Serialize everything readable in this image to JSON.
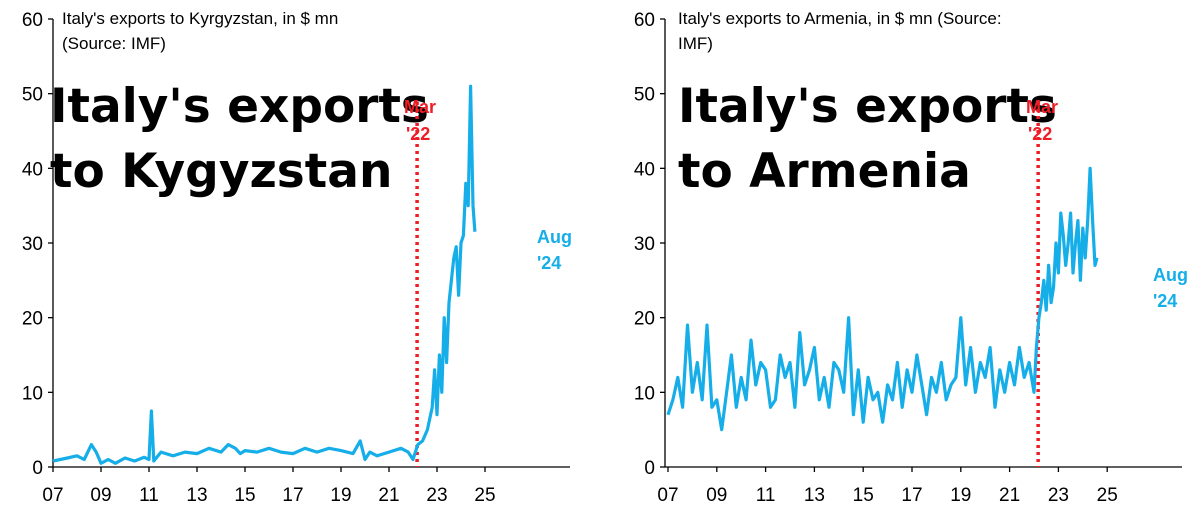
{
  "colors": {
    "series": "#16aee8",
    "marker": "#ee1c25",
    "axis": "#000000"
  },
  "chart_data": [
    {
      "type": "line",
      "subtitle_line1": "Italy's exports to Kyrgyzstan, in $ mn",
      "subtitle_line2": "(Source: IMF)",
      "title_line1": "Italy's exports",
      "title_line2": "to Kygyzstan",
      "x_range": [
        2007,
        2026
      ],
      "xticks": [
        {
          "v": 2007,
          "label": "07"
        },
        {
          "v": 2009,
          "label": "09"
        },
        {
          "v": 2011,
          "label": "11"
        },
        {
          "v": 2013,
          "label": "13"
        },
        {
          "v": 2015,
          "label": "15"
        },
        {
          "v": 2017,
          "label": "17"
        },
        {
          "v": 2019,
          "label": "19"
        },
        {
          "v": 2021,
          "label": "21"
        },
        {
          "v": 2023,
          "label": "23"
        },
        {
          "v": 2025,
          "label": "25"
        }
      ],
      "ylim": [
        0,
        60
      ],
      "yticks": [
        0,
        10,
        20,
        30,
        40,
        50,
        60
      ],
      "marker": {
        "x": 2022.17,
        "label_line1": "Mar",
        "label_line2": "'22"
      },
      "end_label": {
        "line1": "Aug",
        "line2": "'24"
      },
      "series": [
        {
          "x": [
            2007.0,
            2007.3,
            2007.6,
            2008.0,
            2008.3,
            2008.6,
            2008.8,
            2009.0,
            2009.3,
            2009.6,
            2010.0,
            2010.4,
            2010.8,
            2011.0,
            2011.1,
            2011.2,
            2011.5,
            2012.0,
            2012.5,
            2013.0,
            2013.5,
            2014.0,
            2014.3,
            2014.6,
            2014.8,
            2015.0,
            2015.5,
            2016.0,
            2016.5,
            2017.0,
            2017.5,
            2018.0,
            2018.5,
            2019.0,
            2019.5,
            2019.8,
            2020.0,
            2020.2,
            2020.5,
            2021.0,
            2021.5,
            2021.8,
            2022.0,
            2022.2,
            2022.4,
            2022.6,
            2022.8,
            2022.9,
            2023.0,
            2023.1,
            2023.2,
            2023.3,
            2023.4,
            2023.5,
            2023.6,
            2023.7,
            2023.8,
            2023.9,
            2024.0,
            2024.1,
            2024.2,
            2024.3,
            2024.4,
            2024.5,
            2024.58
          ],
          "y": [
            0.8,
            1.0,
            1.2,
            1.5,
            1.0,
            3.0,
            2.0,
            0.5,
            1.0,
            0.5,
            1.2,
            0.8,
            1.3,
            1.0,
            7.5,
            0.8,
            2.0,
            1.5,
            2.0,
            1.8,
            2.5,
            2.0,
            3.0,
            2.5,
            1.8,
            2.2,
            2.0,
            2.5,
            2.0,
            1.8,
            2.5,
            2.0,
            2.5,
            2.2,
            1.8,
            3.5,
            1.0,
            2.0,
            1.5,
            2.0,
            2.5,
            2.0,
            1.0,
            3.0,
            3.5,
            5.0,
            8.0,
            13.0,
            7.0,
            15.0,
            10.0,
            20.0,
            14.0,
            22.0,
            25.0,
            28.0,
            29.5,
            23.0,
            30.0,
            31.0,
            38.0,
            35.0,
            51.0,
            35.0,
            31.5
          ]
        }
      ]
    },
    {
      "type": "line",
      "subtitle_line1": "Italy's exports to Armenia, in $ mn (Source:",
      "subtitle_line2": "IMF)",
      "title_line1": "Italy's exports",
      "title_line2": "to Armenia",
      "x_range": [
        2007,
        2026
      ],
      "xticks": [
        {
          "v": 2007,
          "label": "07"
        },
        {
          "v": 2009,
          "label": "09"
        },
        {
          "v": 2011,
          "label": "11"
        },
        {
          "v": 2013,
          "label": "13"
        },
        {
          "v": 2015,
          "label": "15"
        },
        {
          "v": 2017,
          "label": "17"
        },
        {
          "v": 2019,
          "label": "19"
        },
        {
          "v": 2021,
          "label": "21"
        },
        {
          "v": 2023,
          "label": "23"
        },
        {
          "v": 2025,
          "label": "25"
        }
      ],
      "ylim": [
        0,
        60
      ],
      "yticks": [
        0,
        10,
        20,
        30,
        40,
        50,
        60
      ],
      "marker": {
        "x": 2022.17,
        "label_line1": "Mar",
        "label_line2": "'22"
      },
      "end_label": {
        "line1": "Aug",
        "line2": "'24"
      },
      "series": [
        {
          "x": [
            2007.0,
            2007.2,
            2007.4,
            2007.6,
            2007.8,
            2008.0,
            2008.2,
            2008.4,
            2008.6,
            2008.8,
            2009.0,
            2009.2,
            2009.4,
            2009.6,
            2009.8,
            2010.0,
            2010.2,
            2010.4,
            2010.6,
            2010.8,
            2011.0,
            2011.2,
            2011.4,
            2011.6,
            2011.8,
            2012.0,
            2012.2,
            2012.4,
            2012.6,
            2012.8,
            2013.0,
            2013.2,
            2013.4,
            2013.6,
            2013.8,
            2014.0,
            2014.2,
            2014.4,
            2014.6,
            2014.8,
            2015.0,
            2015.2,
            2015.4,
            2015.6,
            2015.8,
            2016.0,
            2016.2,
            2016.4,
            2016.6,
            2016.8,
            2017.0,
            2017.2,
            2017.4,
            2017.6,
            2017.8,
            2018.0,
            2018.2,
            2018.4,
            2018.6,
            2018.8,
            2019.0,
            2019.2,
            2019.4,
            2019.6,
            2019.8,
            2020.0,
            2020.2,
            2020.4,
            2020.6,
            2020.8,
            2021.0,
            2021.2,
            2021.4,
            2021.6,
            2021.8,
            2022.0,
            2022.1,
            2022.2,
            2022.3,
            2022.4,
            2022.5,
            2022.6,
            2022.7,
            2022.8,
            2022.9,
            2023.0,
            2023.1,
            2023.2,
            2023.3,
            2023.4,
            2023.5,
            2023.6,
            2023.7,
            2023.8,
            2023.9,
            2024.0,
            2024.1,
            2024.2,
            2024.3,
            2024.4,
            2024.5,
            2024.58
          ],
          "y": [
            7,
            9,
            12,
            8,
            19,
            10,
            14,
            9,
            19,
            8,
            9,
            5,
            10,
            15,
            8,
            12,
            9,
            17,
            11,
            14,
            13,
            8,
            9,
            15,
            12,
            14,
            8,
            18,
            11,
            13,
            16,
            9,
            12,
            8,
            14,
            13,
            10,
            20,
            7,
            13,
            6,
            12,
            9,
            10,
            6,
            11,
            9,
            14,
            8,
            13,
            10,
            15,
            11,
            7,
            12,
            10,
            14,
            9,
            11,
            12,
            20,
            11,
            16,
            10,
            14,
            12,
            16,
            8,
            13,
            10,
            14,
            11,
            16,
            12,
            14,
            10,
            16,
            20,
            22,
            25,
            21,
            27,
            22,
            24,
            30,
            26,
            34,
            31,
            27,
            30,
            34,
            26,
            30,
            33,
            25,
            32,
            28,
            33,
            40,
            33,
            27,
            28
          ]
        }
      ]
    }
  ]
}
